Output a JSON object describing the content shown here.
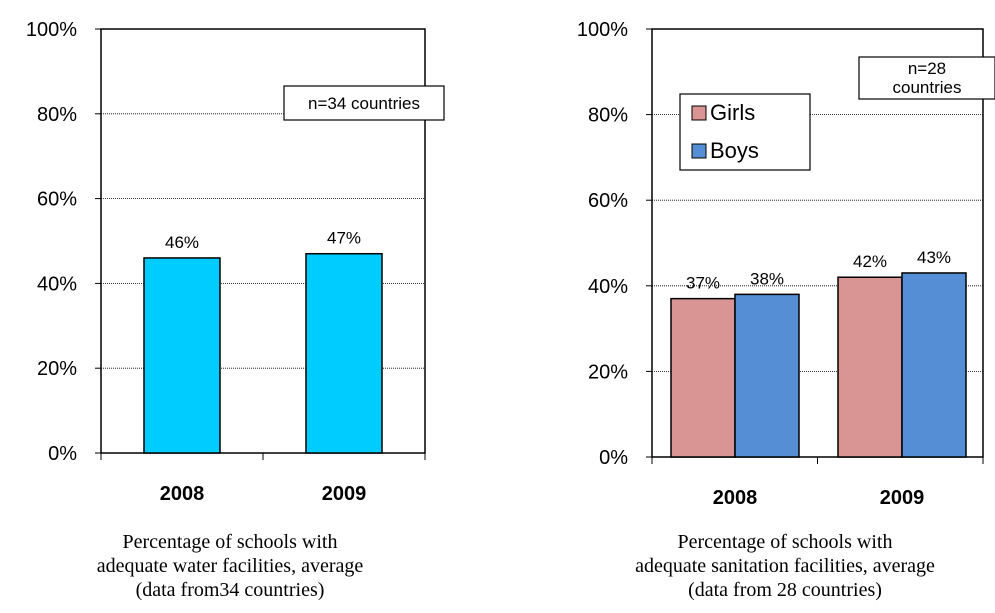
{
  "chart_data": [
    {
      "type": "bar",
      "categories": [
        "2008",
        "2009"
      ],
      "series": [
        {
          "values": [
            46,
            47
          ],
          "color": "#00CCFF",
          "labels": [
            "46%",
            "47%"
          ]
        }
      ],
      "ylim": [
        0,
        100
      ],
      "yticks": [
        "0%",
        "20%",
        "40%",
        "60%",
        "80%",
        "100%"
      ],
      "grid": true,
      "annotation": "n=34 countries",
      "caption": [
        "Percentage of schools with",
        "adequate water facilities, average",
        "(data from34 countries)"
      ]
    },
    {
      "type": "bar",
      "categories": [
        "2008",
        "2009"
      ],
      "series": [
        {
          "name": "Girls",
          "values": [
            37,
            42
          ],
          "color": "#D99594",
          "labels": [
            "37%",
            "42%"
          ]
        },
        {
          "name": "Boys",
          "values": [
            38,
            43
          ],
          "color": "#558ED5",
          "labels": [
            "38%",
            "43%"
          ]
        }
      ],
      "ylim": [
        0,
        100
      ],
      "yticks": [
        "0%",
        "20%",
        "40%",
        "60%",
        "80%",
        "100%"
      ],
      "grid": true,
      "legend": "top-left",
      "annotation": [
        "n=28",
        "countries"
      ],
      "caption": [
        "Percentage of schools with",
        "adequate sanitation facilities, average",
        "(data from 28 countries)"
      ]
    }
  ]
}
